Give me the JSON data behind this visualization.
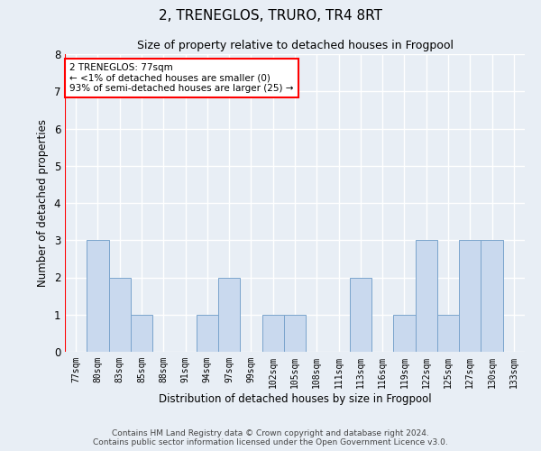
{
  "title": "2, TRENEGLOS, TRURO, TR4 8RT",
  "subtitle": "Size of property relative to detached houses in Frogpool",
  "xlabel": "Distribution of detached houses by size in Frogpool",
  "ylabel": "Number of detached properties",
  "categories": [
    "77sqm",
    "80sqm",
    "83sqm",
    "85sqm",
    "88sqm",
    "91sqm",
    "94sqm",
    "97sqm",
    "99sqm",
    "102sqm",
    "105sqm",
    "108sqm",
    "111sqm",
    "113sqm",
    "116sqm",
    "119sqm",
    "122sqm",
    "125sqm",
    "127sqm",
    "130sqm",
    "133sqm"
  ],
  "values": [
    0,
    3,
    2,
    1,
    0,
    0,
    1,
    2,
    0,
    1,
    1,
    0,
    0,
    2,
    0,
    1,
    3,
    1,
    3,
    3,
    0
  ],
  "highlight_index": 0,
  "bar_color": "#c9d9ee",
  "bar_edge_color": "#7aa4cc",
  "annotation_box_text": "2 TRENEGLOS: 77sqm\n← <1% of detached houses are smaller (0)\n93% of semi-detached houses are larger (25) →",
  "annotation_box_edge_color": "red",
  "ylim": [
    0,
    8
  ],
  "yticks": [
    0,
    1,
    2,
    3,
    4,
    5,
    6,
    7,
    8
  ],
  "footer_line1": "Contains HM Land Registry data © Crown copyright and database right 2024.",
  "footer_line2": "Contains public sector information licensed under the Open Government Licence v3.0.",
  "bg_color": "#e8eef5",
  "plot_bg_color": "#e8eef5",
  "grid_color": "white",
  "highlight_vline_color": "red"
}
